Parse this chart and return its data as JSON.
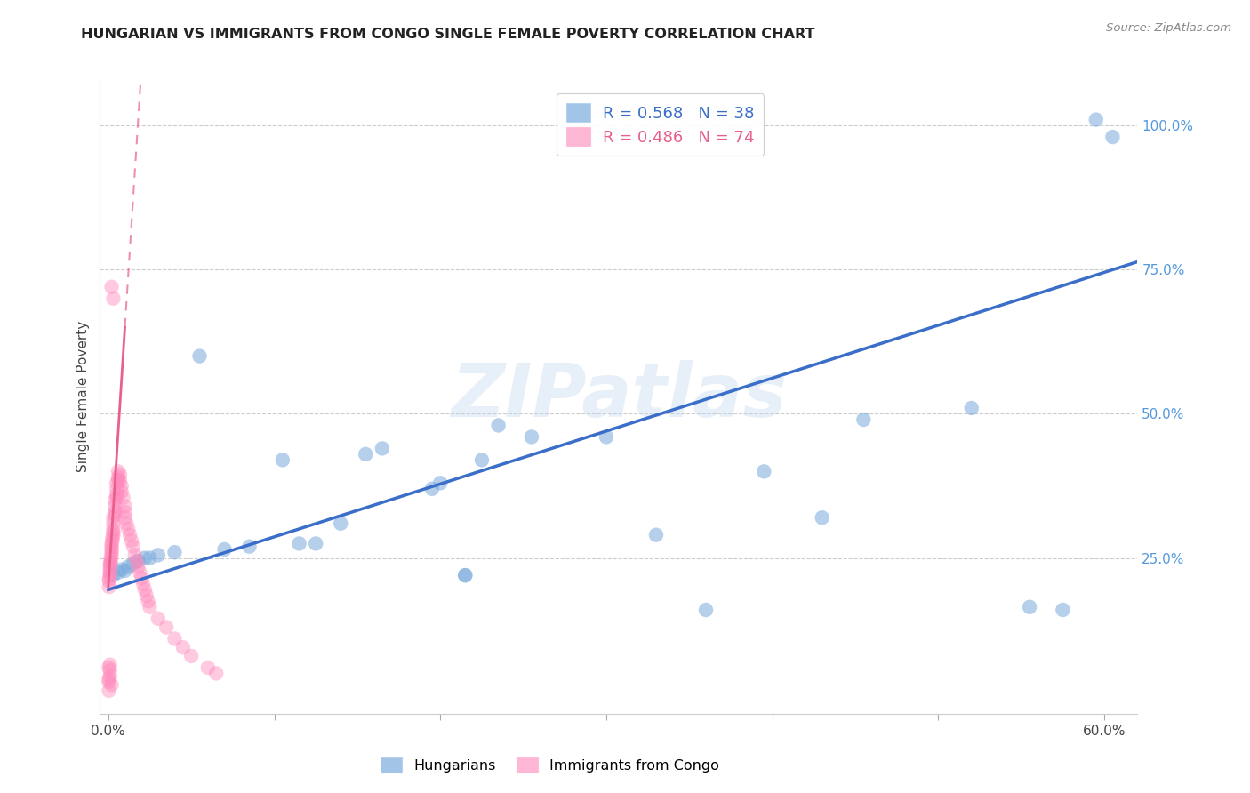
{
  "title": "HUNGARIAN VS IMMIGRANTS FROM CONGO SINGLE FEMALE POVERTY CORRELATION CHART",
  "source": "Source: ZipAtlas.com",
  "ylabel": "Single Female Poverty",
  "xlim": [
    -0.005,
    0.62
  ],
  "ylim": [
    -0.02,
    1.08
  ],
  "xtick_positions": [
    0.0,
    0.1,
    0.2,
    0.3,
    0.4,
    0.5,
    0.6
  ],
  "xticklabels": [
    "0.0%",
    "",
    "",
    "",
    "",
    "",
    "60.0%"
  ],
  "ytick_positions": [
    0.25,
    0.5,
    0.75,
    1.0
  ],
  "ytick_labels": [
    "25.0%",
    "50.0%",
    "75.0%",
    "100.0%"
  ],
  "blue_color": "#7AABDD",
  "pink_color": "#FF88BB",
  "trend_blue_color": "#3A6EC8",
  "trend_pink_color": "#E8608A",
  "blue_label": "Hungarians",
  "pink_label": "Immigrants from Congo",
  "watermark": "ZIPatlas",
  "watermark_color": "#C0D8EE",
  "title_fontsize": 11.5,
  "tick_fontsize": 11,
  "legend_fontsize": 13,
  "blue_x": [
    0.003,
    0.006,
    0.008,
    0.01,
    0.012,
    0.015,
    0.018,
    0.022,
    0.025,
    0.03,
    0.04,
    0.055,
    0.07,
    0.085,
    0.105,
    0.115,
    0.125,
    0.14,
    0.155,
    0.165,
    0.195,
    0.2,
    0.215,
    0.215,
    0.225,
    0.235,
    0.255,
    0.3,
    0.33,
    0.36,
    0.395,
    0.43,
    0.455,
    0.52,
    0.555,
    0.575,
    0.595,
    0.605
  ],
  "blue_y": [
    0.22,
    0.225,
    0.23,
    0.228,
    0.235,
    0.24,
    0.245,
    0.25,
    0.25,
    0.255,
    0.26,
    0.6,
    0.265,
    0.27,
    0.42,
    0.275,
    0.275,
    0.31,
    0.43,
    0.44,
    0.37,
    0.38,
    0.22,
    0.22,
    0.42,
    0.48,
    0.46,
    0.46,
    0.29,
    0.16,
    0.4,
    0.32,
    0.49,
    0.51,
    0.165,
    0.16,
    1.01,
    0.98
  ],
  "pink_x": [
    0.0005,
    0.0005,
    0.0005,
    0.001,
    0.001,
    0.001,
    0.001,
    0.001,
    0.0015,
    0.0015,
    0.0015,
    0.002,
    0.002,
    0.002,
    0.002,
    0.002,
    0.0025,
    0.0025,
    0.003,
    0.003,
    0.003,
    0.003,
    0.003,
    0.004,
    0.004,
    0.004,
    0.004,
    0.005,
    0.005,
    0.005,
    0.005,
    0.006,
    0.006,
    0.006,
    0.007,
    0.007,
    0.008,
    0.008,
    0.009,
    0.01,
    0.01,
    0.01,
    0.011,
    0.012,
    0.013,
    0.014,
    0.015,
    0.016,
    0.017,
    0.018,
    0.019,
    0.02,
    0.021,
    0.022,
    0.023,
    0.024,
    0.025,
    0.03,
    0.035,
    0.04,
    0.045,
    0.05,
    0.06,
    0.065,
    0.0003,
    0.0003,
    0.0004,
    0.0004,
    0.001,
    0.001,
    0.001,
    0.002,
    0.002,
    0.003
  ],
  "pink_y": [
    0.2,
    0.21,
    0.215,
    0.22,
    0.225,
    0.23,
    0.235,
    0.24,
    0.242,
    0.245,
    0.25,
    0.255,
    0.26,
    0.265,
    0.27,
    0.275,
    0.28,
    0.285,
    0.29,
    0.295,
    0.3,
    0.31,
    0.32,
    0.325,
    0.33,
    0.34,
    0.35,
    0.355,
    0.36,
    0.37,
    0.38,
    0.385,
    0.39,
    0.4,
    0.395,
    0.385,
    0.375,
    0.365,
    0.355,
    0.34,
    0.33,
    0.32,
    0.31,
    0.3,
    0.29,
    0.28,
    0.27,
    0.255,
    0.245,
    0.235,
    0.225,
    0.215,
    0.205,
    0.195,
    0.185,
    0.175,
    0.165,
    0.145,
    0.13,
    0.11,
    0.095,
    0.08,
    0.06,
    0.05,
    0.06,
    0.04,
    0.035,
    0.02,
    0.065,
    0.055,
    0.045,
    0.03,
    0.72,
    0.7
  ]
}
